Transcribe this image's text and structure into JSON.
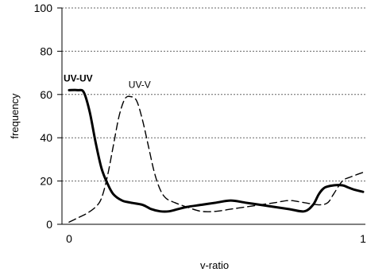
{
  "chart_data": {
    "type": "line",
    "title": "",
    "xlabel": "v-ratio",
    "ylabel": "frequency",
    "xlim": [
      0,
      1
    ],
    "ylim": [
      0,
      100
    ],
    "x_ticks": [
      0,
      1
    ],
    "y_ticks": [
      0,
      20,
      40,
      60,
      80,
      100
    ],
    "grid": "horizontal dotted",
    "legend": "none",
    "series": [
      {
        "name": "UV-UV",
        "style": "solid",
        "color": "#000000",
        "x": [
          0,
          0.03,
          0.05,
          0.07,
          0.09,
          0.11,
          0.13,
          0.15,
          0.18,
          0.21,
          0.25,
          0.28,
          0.31,
          0.34,
          0.37,
          0.4,
          0.45,
          0.5,
          0.55,
          0.6,
          0.65,
          0.7,
          0.75,
          0.8,
          0.83,
          0.85,
          0.87,
          0.9,
          0.93,
          0.95,
          0.97,
          1.0
        ],
        "y": [
          62,
          62,
          61,
          52,
          38,
          26,
          19,
          14,
          11,
          10,
          9,
          7,
          6,
          6,
          7,
          8,
          9,
          10,
          11,
          10,
          9,
          8,
          7,
          6,
          9,
          14,
          17,
          18,
          18,
          17,
          16,
          15
        ]
      },
      {
        "name": "UV-V",
        "style": "dashed",
        "color": "#000000",
        "x": [
          0,
          0.03,
          0.06,
          0.09,
          0.11,
          0.13,
          0.15,
          0.17,
          0.19,
          0.21,
          0.23,
          0.25,
          0.27,
          0.29,
          0.31,
          0.33,
          0.36,
          0.4,
          0.45,
          0.5,
          0.55,
          0.6,
          0.65,
          0.7,
          0.75,
          0.8,
          0.85,
          0.88,
          0.9,
          0.93,
          0.96,
          1.0
        ],
        "y": [
          1,
          3,
          5,
          8,
          12,
          22,
          36,
          50,
          58,
          59,
          57,
          48,
          36,
          24,
          16,
          12,
          10,
          8,
          6,
          6,
          7,
          8,
          9,
          10,
          11,
          10,
          9,
          10,
          14,
          20,
          22,
          24
        ]
      }
    ],
    "annotations": [
      {
        "text": "UV-UV",
        "series": "UV-UV",
        "x": 0.0,
        "y": 66,
        "bold": true
      },
      {
        "text": "UV-V",
        "series": "UV-V",
        "x": 0.24,
        "y": 63,
        "bold": false
      }
    ]
  }
}
